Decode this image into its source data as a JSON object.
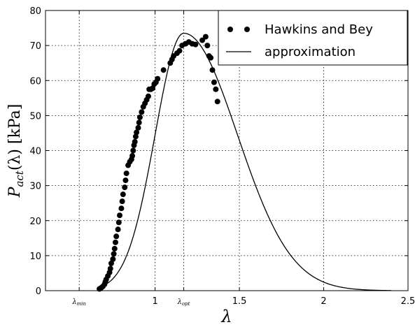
{
  "chart_data": {
    "type": "scatter",
    "xlabel": "λ",
    "ylabel_main": "P",
    "ylabel_sub": "act",
    "ylabel_tail": "(λ) [kPa]",
    "xlim": [
      0.35,
      2.5
    ],
    "ylim": [
      0,
      80
    ],
    "x_ticks": [
      {
        "value": 0.55,
        "label": "λ",
        "sub": "min",
        "small": true
      },
      {
        "value": 1.0,
        "label": "1",
        "sub": "",
        "small": false
      },
      {
        "value": 1.17,
        "label": "λ",
        "sub": "opt",
        "small": true
      },
      {
        "value": 1.5,
        "label": "1.5",
        "sub": "",
        "small": false
      },
      {
        "value": 2.0,
        "label": "2",
        "sub": "",
        "small": false
      },
      {
        "value": 2.5,
        "label": "2.5",
        "sub": "",
        "small": false
      }
    ],
    "y_ticks": [
      0,
      10,
      20,
      30,
      40,
      50,
      60,
      70,
      80
    ],
    "grid": true,
    "legend_position": "top-right",
    "series": [
      {
        "name": "Hawkins and Bey",
        "kind": "scatter",
        "color": "#000000",
        "points": [
          [
            0.67,
            0.5
          ],
          [
            0.68,
            0.8
          ],
          [
            0.69,
            1.2
          ],
          [
            0.7,
            1.8
          ],
          [
            0.705,
            2.5
          ],
          [
            0.71,
            3.2
          ],
          [
            0.72,
            4.2
          ],
          [
            0.73,
            5.2
          ],
          [
            0.735,
            6.3
          ],
          [
            0.74,
            7.8
          ],
          [
            0.75,
            9.0
          ],
          [
            0.755,
            10.5
          ],
          [
            0.76,
            12.0
          ],
          [
            0.765,
            13.8
          ],
          [
            0.77,
            15.5
          ],
          [
            0.78,
            17.5
          ],
          [
            0.785,
            19.5
          ],
          [
            0.79,
            21.5
          ],
          [
            0.8,
            23.5
          ],
          [
            0.805,
            25.5
          ],
          [
            0.81,
            27.5
          ],
          [
            0.82,
            29.5
          ],
          [
            0.825,
            31.5
          ],
          [
            0.83,
            33.5
          ],
          [
            0.84,
            35.8
          ],
          [
            0.85,
            36.8
          ],
          [
            0.86,
            37.5
          ],
          [
            0.865,
            38.5
          ],
          [
            0.87,
            40.0
          ],
          [
            0.875,
            41.5
          ],
          [
            0.88,
            42.5
          ],
          [
            0.885,
            44.0
          ],
          [
            0.89,
            45.2
          ],
          [
            0.9,
            46.5
          ],
          [
            0.905,
            48.0
          ],
          [
            0.91,
            49.5
          ],
          [
            0.92,
            51.0
          ],
          [
            0.93,
            52.5
          ],
          [
            0.94,
            53.5
          ],
          [
            0.95,
            54.5
          ],
          [
            0.96,
            55.5
          ],
          [
            0.965,
            57.5
          ],
          [
            0.975,
            57.5
          ],
          [
            0.985,
            57.8
          ],
          [
            0.995,
            59.0
          ],
          [
            1.005,
            59.5
          ],
          [
            1.015,
            60.5
          ],
          [
            1.05,
            63.0
          ],
          [
            1.09,
            65.0
          ],
          [
            1.1,
            66.0
          ],
          [
            1.11,
            67.0
          ],
          [
            1.13,
            67.8
          ],
          [
            1.145,
            68.5
          ],
          [
            1.16,
            70.0
          ],
          [
            1.18,
            70.5
          ],
          [
            1.2,
            71.0
          ],
          [
            1.22,
            70.5
          ],
          [
            1.24,
            70.3
          ],
          [
            1.28,
            71.5
          ],
          [
            1.3,
            72.5
          ],
          [
            1.31,
            70.0
          ],
          [
            1.32,
            67.0
          ],
          [
            1.33,
            66.5
          ],
          [
            1.34,
            63.0
          ],
          [
            1.35,
            59.5
          ],
          [
            1.36,
            57.5
          ],
          [
            1.37,
            54.0
          ]
        ]
      },
      {
        "name": "approximation",
        "kind": "line",
        "color": "#000000",
        "lambda_opt": 1.17,
        "peak": 73.5,
        "width_left": 0.24,
        "width_right": 0.45
      }
    ]
  }
}
